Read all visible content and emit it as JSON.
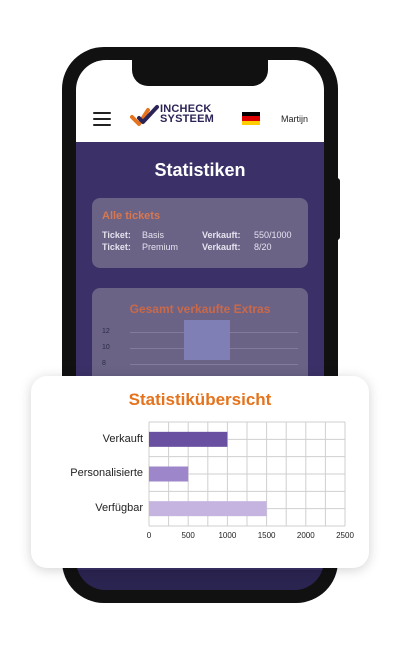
{
  "header": {
    "logo_line1": "INCHECK",
    "logo_line2": "SYSTEEM",
    "user_name": "Martijn",
    "menu_icon": "hamburger-menu-icon",
    "language_icon": "german-flag-icon"
  },
  "page": {
    "title": "Statistiken"
  },
  "tickets": {
    "title": "Alle tickets",
    "rows": [
      {
        "ticket_key": "Ticket:",
        "ticket_value": "Basis",
        "sale_key": "Verkauft:",
        "sale_value": "550/1000"
      },
      {
        "ticket_key": "Ticket:",
        "ticket_value": "Premium",
        "sale_key": "Verkauft:",
        "sale_value": "8/20"
      }
    ]
  },
  "extras": {
    "title": "Gesamt verkaufte Extras",
    "yticks": [
      "12",
      "10",
      "8"
    ]
  },
  "overview": {
    "title": "Statistikübersicht"
  },
  "colors": {
    "accent_orange": "#e5731d",
    "screen_bg": "#3b3168",
    "bar_verkauft": "#6a50a0",
    "bar_personalisierte": "#9d86c9",
    "bar_verfuegbar": "#c5b3e0"
  },
  "chart_data": {
    "type": "bar",
    "orientation": "horizontal",
    "title": "Statistikübersicht",
    "categories": [
      "Verkauft",
      "Personalisierte",
      "Verfügbar"
    ],
    "values": [
      1000,
      500,
      1500
    ],
    "xlim": [
      0,
      2500
    ],
    "xticks": [
      0,
      500,
      1000,
      1500,
      2000,
      2500
    ],
    "grid": true
  }
}
